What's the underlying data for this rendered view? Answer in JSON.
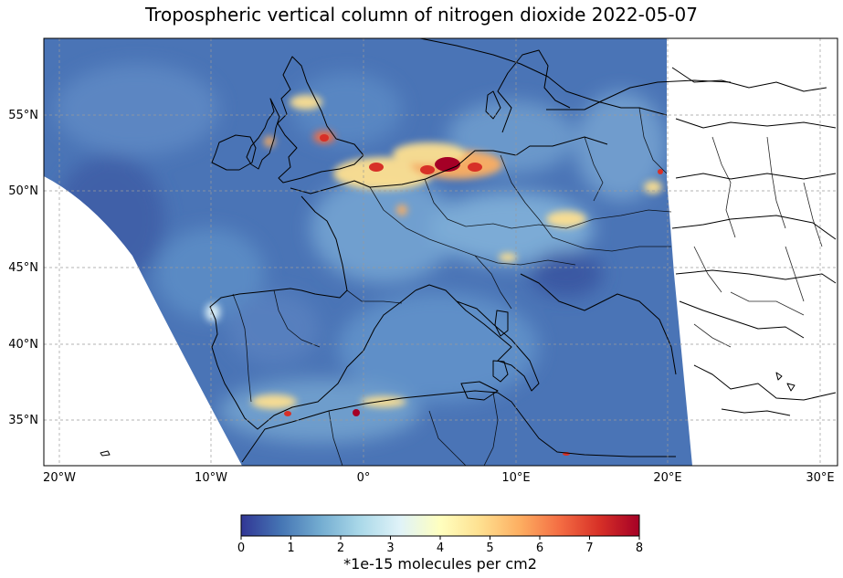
{
  "title": "Tropospheric vertical column of nitrogen dioxide 2022-05-07",
  "map": {
    "lon_ticks": [
      "20°W",
      "10°W",
      "0°",
      "10°E",
      "20°E",
      "30°E"
    ],
    "lat_ticks": [
      "55°N",
      "50°N",
      "45°N",
      "40°N",
      "35°N"
    ]
  },
  "colorbar": {
    "label": "*1e-15 molecules per cm2",
    "ticks": [
      "0",
      "1",
      "2",
      "3",
      "4",
      "5",
      "6",
      "7",
      "8"
    ],
    "colormap": [
      "#313695",
      "#4575b4",
      "#74add1",
      "#abd9e9",
      "#e0f3f8",
      "#ffffbf",
      "#fee090",
      "#fdae61",
      "#f46d43",
      "#d73027",
      "#a50026"
    ]
  }
}
